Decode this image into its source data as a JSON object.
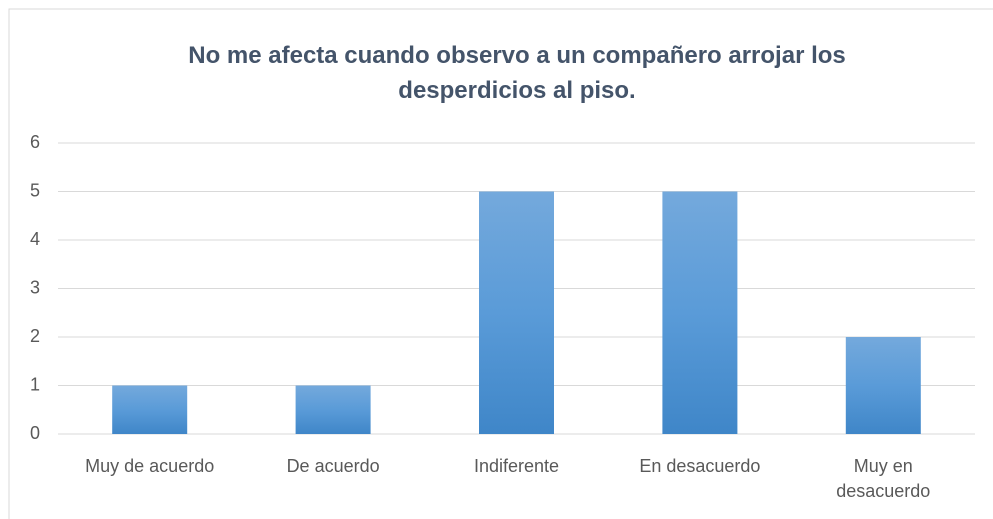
{
  "chart_data": {
    "type": "bar",
    "title": "No me afecta cuando observo a un compañero arrojar los desperdicios al piso.",
    "categories": [
      "Muy de acuerdo",
      "De acuerdo",
      "Indiferente",
      "En desacuerdo",
      "Muy en desacuerdo"
    ],
    "values": [
      1,
      1,
      5,
      5,
      2
    ],
    "color": "#5b9bd5",
    "ylim": [
      0,
      6
    ],
    "yticks": [
      0,
      1,
      2,
      3,
      4,
      5,
      6
    ],
    "grid": true
  }
}
